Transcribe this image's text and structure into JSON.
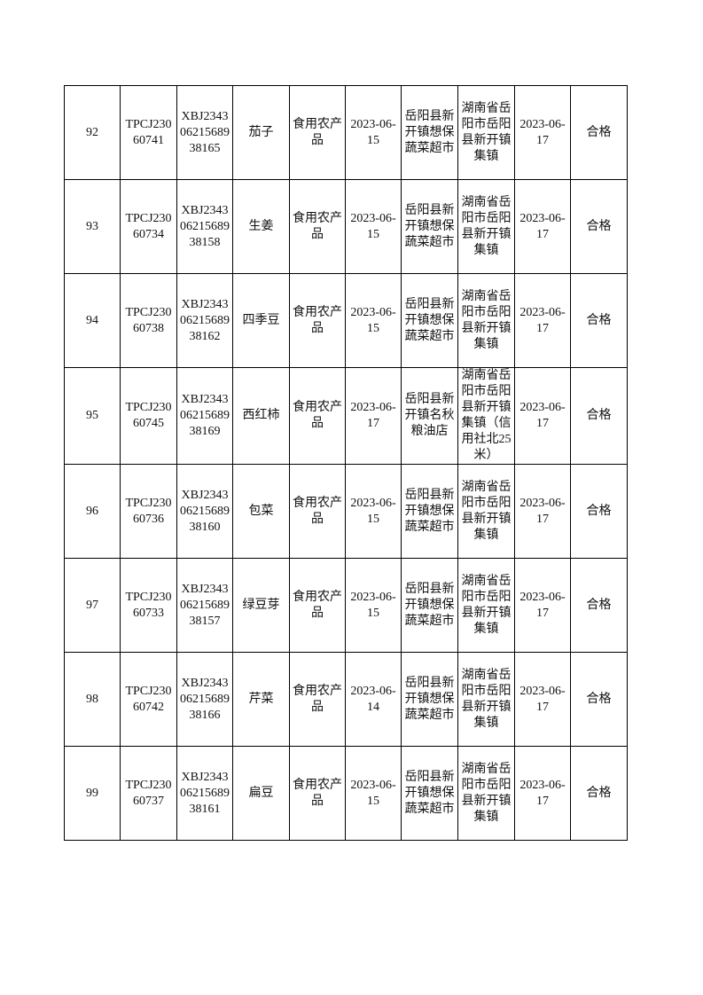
{
  "rows": [
    {
      "no": "92",
      "task": "TPCJ230\n60741",
      "sample": "XBJ2343\n06215689\n38165",
      "name": "茄子",
      "category": "食用农产\n品",
      "date": "2023-06-\n15",
      "seller": "岳阳县新\n开镇想保\n蔬菜超市",
      "address": "湖南省岳\n阳市岳阳\n县新开镇\n集镇",
      "report_date": "2023-06-\n17",
      "result": "合格"
    },
    {
      "no": "93",
      "task": "TPCJ230\n60734",
      "sample": "XBJ2343\n06215689\n38158",
      "name": "生姜",
      "category": "食用农产\n品",
      "date": "2023-06-\n15",
      "seller": "岳阳县新\n开镇想保\n蔬菜超市",
      "address": "湖南省岳\n阳市岳阳\n县新开镇\n集镇",
      "report_date": "2023-06-\n17",
      "result": "合格"
    },
    {
      "no": "94",
      "task": "TPCJ230\n60738",
      "sample": "XBJ2343\n06215689\n38162",
      "name": "四季豆",
      "category": "食用农产\n品",
      "date": "2023-06-\n15",
      "seller": "岳阳县新\n开镇想保\n蔬菜超市",
      "address": "湖南省岳\n阳市岳阳\n县新开镇\n集镇",
      "report_date": "2023-06-\n17",
      "result": "合格"
    },
    {
      "no": "95",
      "task": "TPCJ230\n60745",
      "sample": "XBJ2343\n06215689\n38169",
      "name": "西红柿",
      "category": "食用农产\n品",
      "date": "2023-06-\n17",
      "seller": "岳阳县新\n开镇名秋\n粮油店",
      "address": "湖南省岳\n阳市岳阳\n县新开镇\n集镇（信\n用社北25\n米）",
      "report_date": "2023-06-\n17",
      "result": "合格"
    },
    {
      "no": "96",
      "task": "TPCJ230\n60736",
      "sample": "XBJ2343\n06215689\n38160",
      "name": "包菜",
      "category": "食用农产\n品",
      "date": "2023-06-\n15",
      "seller": "岳阳县新\n开镇想保\n蔬菜超市",
      "address": "湖南省岳\n阳市岳阳\n县新开镇\n集镇",
      "report_date": "2023-06-\n17",
      "result": "合格"
    },
    {
      "no": "97",
      "task": "TPCJ230\n60733",
      "sample": "XBJ2343\n06215689\n38157",
      "name": "绿豆芽",
      "category": "食用农产\n品",
      "date": "2023-06-\n15",
      "seller": "岳阳县新\n开镇想保\n蔬菜超市",
      "address": "湖南省岳\n阳市岳阳\n县新开镇\n集镇",
      "report_date": "2023-06-\n17",
      "result": "合格"
    },
    {
      "no": "98",
      "task": "TPCJ230\n60742",
      "sample": "XBJ2343\n06215689\n38166",
      "name": "芹菜",
      "category": "食用农产\n品",
      "date": "2023-06-\n14",
      "seller": "岳阳县新\n开镇想保\n蔬菜超市",
      "address": "湖南省岳\n阳市岳阳\n县新开镇\n集镇",
      "report_date": "2023-06-\n17",
      "result": "合格"
    },
    {
      "no": "99",
      "task": "TPCJ230\n60737",
      "sample": "XBJ2343\n06215689\n38161",
      "name": "扁豆",
      "category": "食用农产\n品",
      "date": "2023-06-\n15",
      "seller": "岳阳县新\n开镇想保\n蔬菜超市",
      "address": "湖南省岳\n阳市岳阳\n县新开镇\n集镇",
      "report_date": "2023-06-\n17",
      "result": "合格"
    }
  ]
}
